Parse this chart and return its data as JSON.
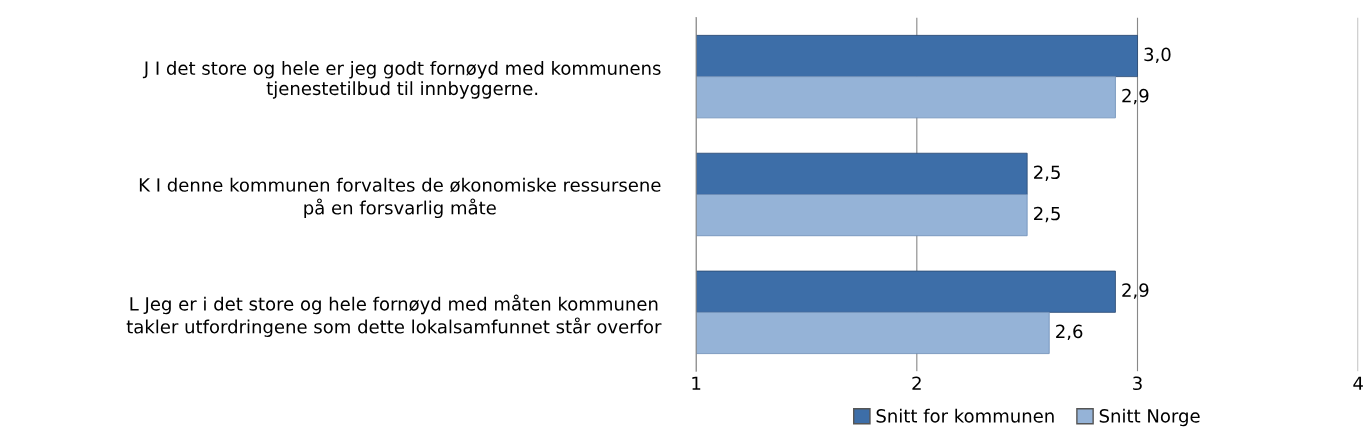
{
  "chart_data": {
    "type": "bar",
    "orientation": "horizontal",
    "categories": [
      "J I det store og hele er jeg godt fornøyd med kommunens\ntjenestetilbud til innbyggerne.",
      "K I denne kommunen forvaltes de økonomiske ressursene\npå en forsvarlig måte",
      "L Jeg er i det store og hele fornøyd med måten kommunen\ntakler utfordringene som dette lokalsamfunnet står overfor"
    ],
    "series": [
      {
        "name": "Snitt for kommunen",
        "color": "#3d6ea8",
        "values": [
          3.0,
          2.5,
          2.9
        ],
        "value_labels": [
          "3,0",
          "2,5",
          "2,9"
        ]
      },
      {
        "name": "Snitt Norge",
        "color": "#95b3d7",
        "values": [
          2.9,
          2.5,
          2.6
        ],
        "value_labels": [
          "2,9",
          "2,5",
          "2,6"
        ]
      }
    ],
    "xlim": [
      1,
      4
    ],
    "xticks": [
      1,
      2,
      3,
      4
    ],
    "grid": "x",
    "legend": "bottom"
  }
}
